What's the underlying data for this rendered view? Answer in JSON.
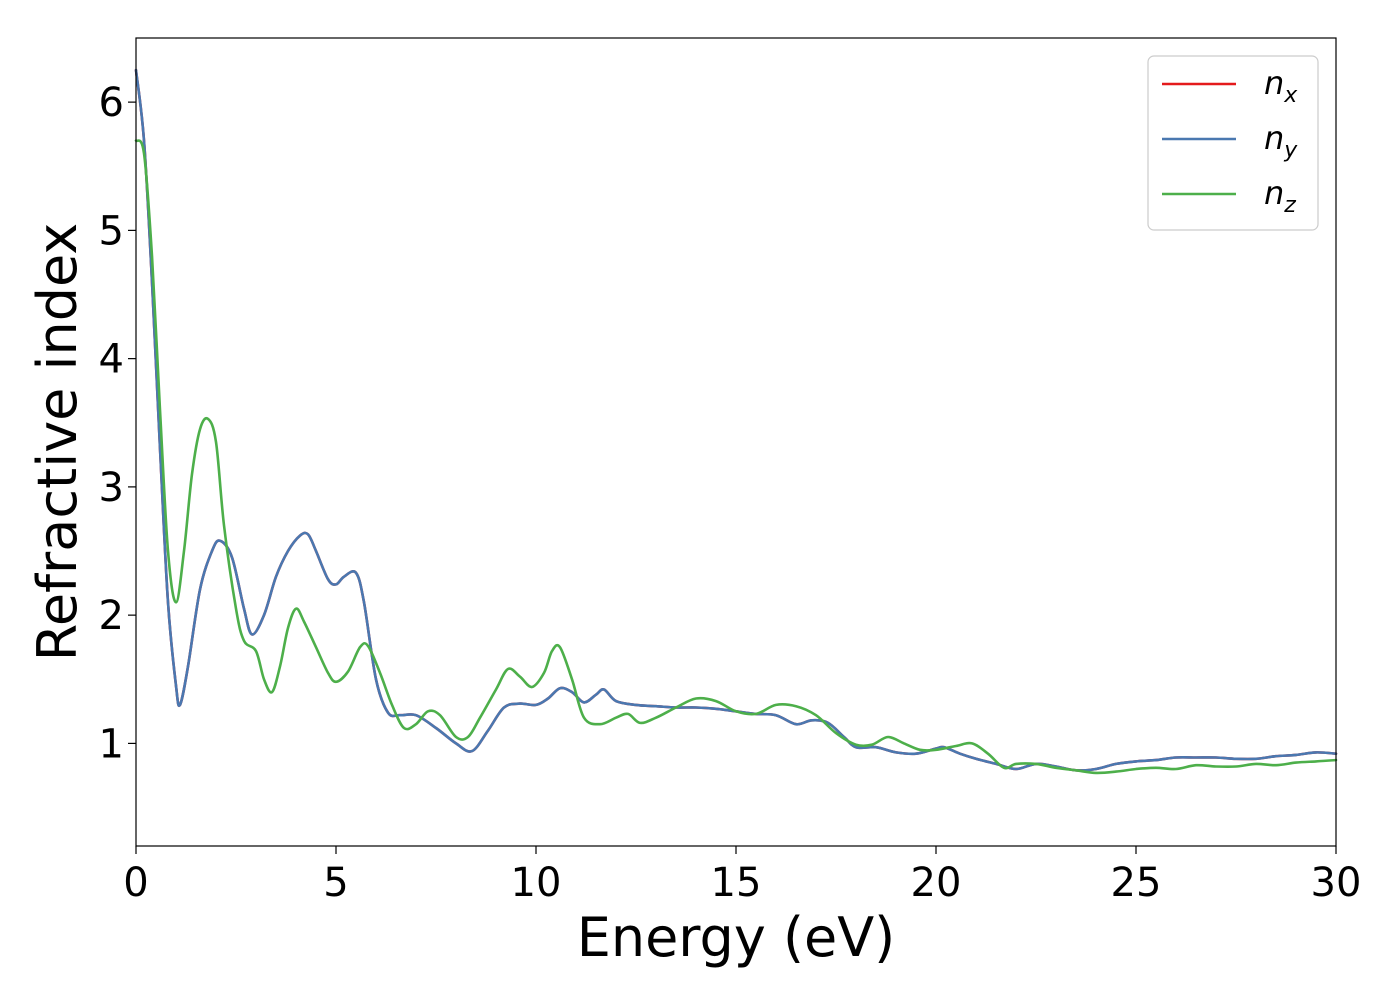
{
  "chart_data": {
    "type": "line",
    "title": "",
    "xlabel": "Energy (eV)",
    "ylabel": "Refractive index",
    "xlim": [
      0,
      30
    ],
    "ylim": [
      0.2,
      6.5
    ],
    "xticks": [
      0,
      5,
      10,
      15,
      20,
      25,
      30
    ],
    "yticks": [
      1,
      2,
      3,
      4,
      5,
      6
    ],
    "grid": false,
    "legend_position": "top-right",
    "series": [
      {
        "name": "n",
        "subscript": "x",
        "color": "#e41a1c",
        "x": [
          0,
          0.2,
          0.4,
          0.6,
          0.8,
          1.0,
          1.1,
          1.3,
          1.6,
          1.9,
          2.1,
          2.4,
          2.7,
          2.9,
          3.2,
          3.5,
          3.8,
          4.1,
          4.3,
          4.5,
          4.8,
          5.0,
          5.2,
          5.5,
          5.7,
          6.0,
          6.3,
          6.6,
          7.0,
          7.5,
          8.0,
          8.4,
          8.8,
          9.2,
          9.6,
          10.0,
          10.3,
          10.6,
          10.9,
          11.2,
          11.5,
          11.7,
          12.0,
          12.5,
          13.0,
          13.5,
          14.0,
          14.5,
          15.0,
          15.5,
          16.0,
          16.5,
          16.9,
          17.3,
          17.7,
          18.0,
          18.5,
          19.0,
          19.5,
          20.0,
          20.2,
          20.6,
          21.0,
          21.5,
          22.0,
          22.5,
          23.0,
          23.5,
          24.0,
          24.5,
          25.0,
          25.5,
          26.0,
          26.5,
          27.0,
          27.5,
          28.0,
          28.5,
          29.0,
          29.5,
          30.0
        ],
        "y": [
          6.25,
          5.7,
          4.6,
          3.3,
          2.1,
          1.45,
          1.3,
          1.6,
          2.2,
          2.5,
          2.58,
          2.45,
          2.05,
          1.85,
          2.0,
          2.3,
          2.5,
          2.62,
          2.63,
          2.5,
          2.28,
          2.24,
          2.3,
          2.33,
          2.1,
          1.5,
          1.24,
          1.22,
          1.22,
          1.12,
          1.0,
          0.94,
          1.1,
          1.28,
          1.31,
          1.3,
          1.35,
          1.43,
          1.4,
          1.32,
          1.38,
          1.42,
          1.33,
          1.3,
          1.29,
          1.28,
          1.28,
          1.27,
          1.25,
          1.23,
          1.22,
          1.15,
          1.18,
          1.16,
          1.05,
          0.97,
          0.97,
          0.93,
          0.92,
          0.96,
          0.97,
          0.92,
          0.88,
          0.84,
          0.8,
          0.84,
          0.82,
          0.79,
          0.8,
          0.84,
          0.86,
          0.87,
          0.89,
          0.89,
          0.89,
          0.88,
          0.88,
          0.9,
          0.91,
          0.93,
          0.92
        ]
      },
      {
        "name": "n",
        "subscript": "y",
        "color": "#4a78b0",
        "x": [
          0,
          0.2,
          0.4,
          0.6,
          0.8,
          1.0,
          1.1,
          1.3,
          1.6,
          1.9,
          2.1,
          2.4,
          2.7,
          2.9,
          3.2,
          3.5,
          3.8,
          4.1,
          4.3,
          4.5,
          4.8,
          5.0,
          5.2,
          5.5,
          5.7,
          6.0,
          6.3,
          6.6,
          7.0,
          7.5,
          8.0,
          8.4,
          8.8,
          9.2,
          9.6,
          10.0,
          10.3,
          10.6,
          10.9,
          11.2,
          11.5,
          11.7,
          12.0,
          12.5,
          13.0,
          13.5,
          14.0,
          14.5,
          15.0,
          15.5,
          16.0,
          16.5,
          16.9,
          17.3,
          17.7,
          18.0,
          18.5,
          19.0,
          19.5,
          20.0,
          20.2,
          20.6,
          21.0,
          21.5,
          22.0,
          22.5,
          23.0,
          23.5,
          24.0,
          24.5,
          25.0,
          25.5,
          26.0,
          26.5,
          27.0,
          27.5,
          28.0,
          28.5,
          29.0,
          29.5,
          30.0
        ],
        "y": [
          6.25,
          5.7,
          4.6,
          3.3,
          2.1,
          1.45,
          1.3,
          1.6,
          2.2,
          2.5,
          2.58,
          2.45,
          2.05,
          1.85,
          2.0,
          2.3,
          2.5,
          2.62,
          2.63,
          2.5,
          2.28,
          2.24,
          2.3,
          2.33,
          2.1,
          1.5,
          1.24,
          1.22,
          1.22,
          1.12,
          1.0,
          0.94,
          1.1,
          1.28,
          1.31,
          1.3,
          1.35,
          1.43,
          1.4,
          1.32,
          1.38,
          1.42,
          1.33,
          1.3,
          1.29,
          1.28,
          1.28,
          1.27,
          1.25,
          1.23,
          1.22,
          1.15,
          1.18,
          1.16,
          1.05,
          0.97,
          0.97,
          0.93,
          0.92,
          0.96,
          0.97,
          0.92,
          0.88,
          0.84,
          0.8,
          0.84,
          0.82,
          0.79,
          0.8,
          0.84,
          0.86,
          0.87,
          0.89,
          0.89,
          0.89,
          0.88,
          0.88,
          0.9,
          0.91,
          0.93,
          0.92
        ]
      },
      {
        "name": "n",
        "subscript": "z",
        "color": "#4daf4a",
        "x": [
          0,
          0.2,
          0.4,
          0.6,
          0.8,
          1.0,
          1.2,
          1.4,
          1.6,
          1.8,
          2.0,
          2.2,
          2.5,
          2.7,
          3.0,
          3.2,
          3.4,
          3.6,
          3.8,
          4.0,
          4.2,
          4.5,
          4.8,
          5.0,
          5.3,
          5.6,
          5.8,
          6.1,
          6.4,
          6.7,
          7.0,
          7.3,
          7.6,
          8.0,
          8.3,
          8.6,
          9.0,
          9.3,
          9.6,
          9.9,
          10.2,
          10.4,
          10.6,
          10.9,
          11.2,
          11.6,
          12.0,
          12.3,
          12.6,
          13.0,
          13.5,
          14.0,
          14.5,
          15.0,
          15.5,
          16.0,
          16.5,
          17.0,
          17.5,
          18.0,
          18.4,
          18.8,
          19.2,
          19.6,
          20.0,
          20.5,
          20.9,
          21.3,
          21.7,
          22.0,
          22.5,
          23.0,
          23.5,
          24.0,
          24.5,
          25.0,
          25.5,
          26.0,
          26.5,
          27.0,
          27.5,
          28.0,
          28.5,
          29.0,
          29.5,
          30.0
        ],
        "y": [
          5.7,
          5.6,
          4.8,
          3.6,
          2.5,
          2.1,
          2.5,
          3.1,
          3.45,
          3.53,
          3.35,
          2.7,
          2.05,
          1.8,
          1.72,
          1.5,
          1.4,
          1.6,
          1.9,
          2.05,
          1.95,
          1.75,
          1.55,
          1.48,
          1.56,
          1.75,
          1.76,
          1.55,
          1.3,
          1.12,
          1.15,
          1.25,
          1.22,
          1.05,
          1.05,
          1.2,
          1.42,
          1.58,
          1.52,
          1.44,
          1.55,
          1.72,
          1.75,
          1.5,
          1.2,
          1.15,
          1.2,
          1.23,
          1.16,
          1.2,
          1.28,
          1.35,
          1.33,
          1.25,
          1.23,
          1.3,
          1.29,
          1.22,
          1.08,
          0.99,
          0.99,
          1.05,
          1.0,
          0.95,
          0.95,
          0.98,
          1.0,
          0.92,
          0.81,
          0.84,
          0.84,
          0.81,
          0.79,
          0.77,
          0.78,
          0.8,
          0.81,
          0.8,
          0.83,
          0.82,
          0.82,
          0.84,
          0.83,
          0.85,
          0.86,
          0.87
        ]
      }
    ]
  }
}
